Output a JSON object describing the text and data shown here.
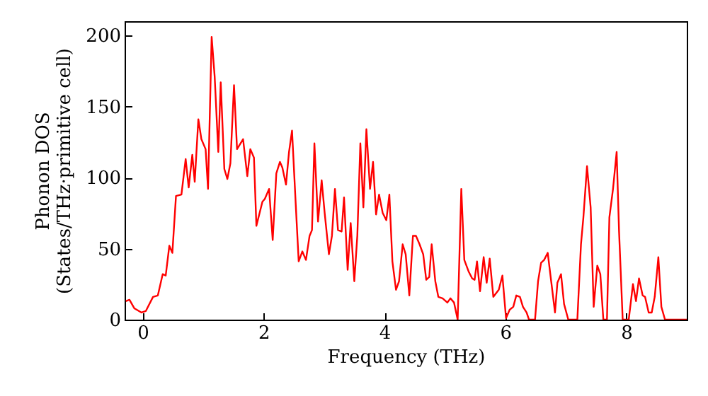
{
  "chart_data": {
    "type": "line",
    "xlabel": "Frequency (THz)",
    "ylabel": "Phonon DOS\n(States/THz·primitive cell)",
    "xlim": [
      -0.3,
      9.0
    ],
    "xticks": [
      0,
      2,
      4,
      6,
      8
    ],
    "ylim": [
      0,
      210
    ],
    "yticks": [
      0,
      50,
      100,
      150,
      200
    ],
    "grid": false,
    "x": [
      -0.28,
      -0.22,
      -0.14,
      -0.02,
      0.05,
      0.17,
      0.25,
      0.33,
      0.38,
      0.44,
      0.49,
      0.55,
      0.64,
      0.71,
      0.76,
      0.82,
      0.86,
      0.92,
      0.97,
      1.04,
      1.08,
      1.14,
      1.19,
      1.25,
      1.29,
      1.35,
      1.4,
      1.45,
      1.51,
      1.56,
      1.66,
      1.73,
      1.78,
      1.84,
      1.88,
      1.98,
      2.02,
      2.09,
      2.15,
      2.21,
      2.27,
      2.31,
      2.37,
      2.42,
      2.47,
      2.53,
      2.58,
      2.64,
      2.7,
      2.76,
      2.8,
      2.84,
      2.9,
      2.96,
      3.01,
      3.08,
      3.13,
      3.18,
      3.23,
      3.29,
      3.33,
      3.39,
      3.44,
      3.5,
      3.55,
      3.6,
      3.65,
      3.7,
      3.76,
      3.81,
      3.86,
      3.91,
      3.97,
      4.03,
      4.08,
      4.13,
      4.19,
      4.24,
      4.3,
      4.35,
      4.41,
      4.47,
      4.52,
      4.58,
      4.64,
      4.69,
      4.74,
      4.78,
      4.84,
      4.89,
      4.96,
      5.04,
      5.09,
      5.15,
      5.21,
      5.27,
      5.32,
      5.39,
      5.45,
      5.49,
      5.53,
      5.58,
      5.64,
      5.69,
      5.74,
      5.8,
      5.89,
      5.95,
      6.01,
      6.07,
      6.13,
      6.18,
      6.24,
      6.29,
      6.35,
      6.39,
      6.49,
      6.54,
      6.59,
      6.64,
      6.7,
      6.76,
      6.82,
      6.86,
      6.92,
      6.97,
      7.04,
      7.19,
      7.25,
      7.29,
      7.35,
      7.41,
      7.46,
      7.52,
      7.57,
      7.62,
      7.68,
      7.72,
      7.78,
      7.84,
      7.88,
      7.94,
      8.04,
      8.11,
      8.16,
      8.21,
      8.27,
      8.31,
      8.37,
      8.42,
      8.47,
      8.53,
      8.58,
      8.64,
      9.0
    ],
    "series": [
      {
        "color": "#ff0000",
        "values": [
          13,
          14,
          8,
          5,
          6,
          16,
          17,
          32,
          31,
          52,
          47,
          87,
          88,
          113,
          93,
          116,
          97,
          141,
          127,
          120,
          92,
          199,
          171,
          118,
          167,
          106,
          99,
          110,
          165,
          120,
          127,
          101,
          120,
          114,
          66,
          83,
          85,
          92,
          56,
          103,
          111,
          107,
          95,
          118,
          133,
          82,
          41,
          48,
          42,
          59,
          63,
          124,
          69,
          98,
          75,
          46,
          59,
          92,
          63,
          62,
          86,
          35,
          68,
          27,
          59,
          124,
          79,
          134,
          92,
          111,
          74,
          88,
          75,
          70,
          88,
          41,
          21,
          27,
          53,
          46,
          17,
          59,
          59,
          53,
          46,
          28,
          30,
          53,
          27,
          16,
          15,
          12,
          15,
          12,
          0,
          92,
          42,
          34,
          29,
          28,
          41,
          20,
          44,
          26,
          43,
          16,
          21,
          31,
          1,
          7,
          9,
          17,
          16,
          9,
          5,
          0,
          0,
          27,
          40,
          42,
          47,
          26,
          5,
          26,
          32,
          11,
          0,
          0,
          53,
          72,
          108,
          79,
          9,
          38,
          32,
          0,
          0,
          72,
          92,
          118,
          62,
          0,
          0,
          25,
          13,
          29,
          17,
          16,
          5,
          5,
          16,
          44,
          9,
          0,
          0
        ]
      }
    ]
  }
}
